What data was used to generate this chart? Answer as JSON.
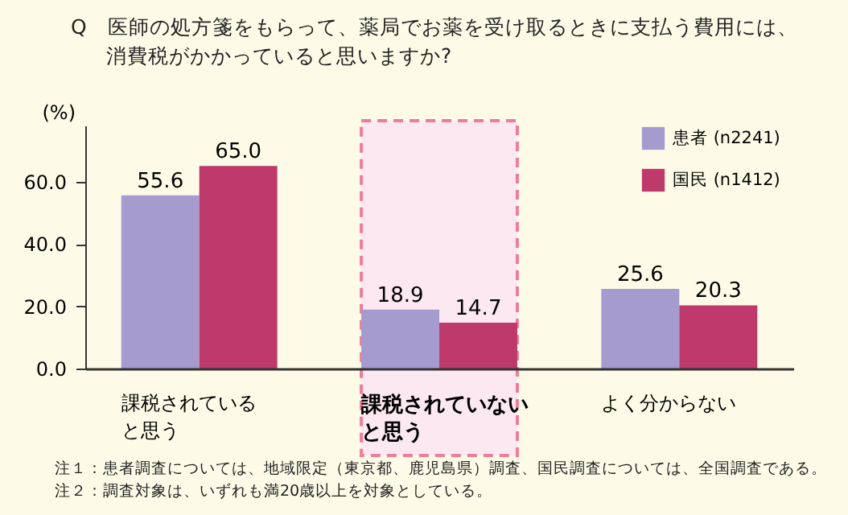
{
  "chart_data": {
    "type": "bar",
    "title": "Q　医師の処方箋をもらって、薬局でお薬を受け取るときに支払う費用には、消費税がかかっていると思いますか?",
    "ylabel": "(%)",
    "categories": [
      "課税されていると思う",
      "課税されていないと思う",
      "よく分からない"
    ],
    "series": [
      {
        "name": "患者 (n2241)",
        "color": "#a59bcf",
        "values": [
          55.6,
          18.9,
          25.6
        ],
        "value_labels": [
          "55.6",
          "18.9",
          "25.6"
        ]
      },
      {
        "name": "国民 (n1412)",
        "color": "#bd3a6a",
        "values": [
          65.0,
          14.7,
          20.3
        ],
        "value_labels": [
          "65.0",
          "14.7",
          "20.3"
        ]
      }
    ],
    "ylim": [
      0,
      78
    ],
    "yticks": [
      {
        "value": 0,
        "label": "0.0"
      },
      {
        "value": 20,
        "label": "20.0"
      },
      {
        "value": 40,
        "label": "40.0"
      },
      {
        "value": 60,
        "label": "60.0"
      }
    ],
    "bands": [
      {
        "axis": "x",
        "from": "課税されていないと思う",
        "to": "課税されていないと思う",
        "color": "#fce8f0"
      }
    ],
    "legend": "top right",
    "grid": false,
    "annotations": [
      "注１：患者調査については、地域限定（東京都、鹿児島県）調査、国民調査については、全国調査である。",
      "注２：調査対象は、いずれも満20歳以上を対象としている。"
    ]
  }
}
